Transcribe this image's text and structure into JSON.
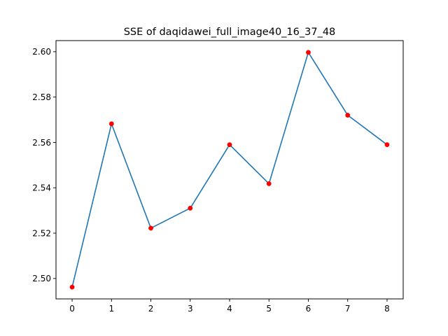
{
  "chart_data": {
    "type": "line",
    "title": "SSE of daqidawei_full_image40_16_37_48",
    "xlabel": "",
    "ylabel": "",
    "x": [
      0,
      1,
      2,
      3,
      4,
      5,
      6,
      7,
      8
    ],
    "series": [
      {
        "values": [
          2.4962,
          2.5682,
          2.5222,
          2.531,
          2.559,
          2.5418,
          2.5997,
          2.572,
          2.559
        ],
        "line_color": "#1f77b4",
        "marker_color": "#ff0000"
      }
    ],
    "xlim": [
      -0.41,
      8.41
    ],
    "ylim": [
      2.491,
      2.6049
    ],
    "xticks": [
      0,
      1,
      2,
      3,
      4,
      5,
      6,
      7,
      8
    ],
    "xtick_labels": [
      "0",
      "1",
      "2",
      "3",
      "4",
      "5",
      "6",
      "7",
      "8"
    ],
    "yticks": [
      2.5,
      2.52,
      2.54,
      2.56,
      2.58,
      2.6
    ],
    "ytick_labels": [
      "2.50",
      "2.52",
      "2.54",
      "2.56",
      "2.58",
      "2.60"
    ],
    "grid": false,
    "legend": "none"
  }
}
